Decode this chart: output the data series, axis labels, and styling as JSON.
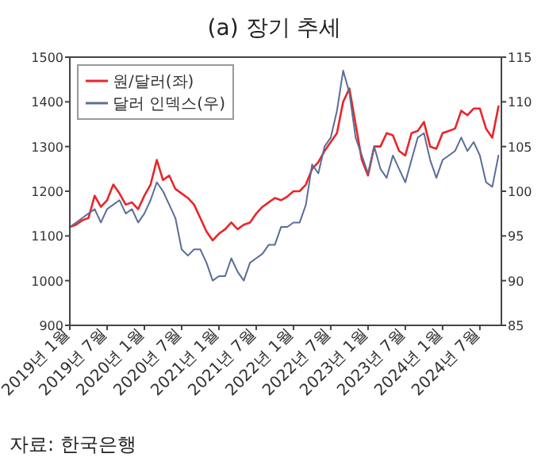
{
  "chart_data": {
    "type": "line",
    "title": "(a) 장기 추세",
    "annotations": [
      "자료: 한국은행"
    ],
    "x": [
      "2019-01",
      "2019-02",
      "2019-03",
      "2019-04",
      "2019-05",
      "2019-06",
      "2019-07",
      "2019-08",
      "2019-09",
      "2019-10",
      "2019-11",
      "2019-12",
      "2020-01",
      "2020-02",
      "2020-03",
      "2020-04",
      "2020-05",
      "2020-06",
      "2020-07",
      "2020-08",
      "2020-09",
      "2020-10",
      "2020-11",
      "2020-12",
      "2021-01",
      "2021-02",
      "2021-03",
      "2021-04",
      "2021-05",
      "2021-06",
      "2021-07",
      "2021-08",
      "2021-09",
      "2021-10",
      "2021-11",
      "2021-12",
      "2022-01",
      "2022-02",
      "2022-03",
      "2022-04",
      "2022-05",
      "2022-06",
      "2022-07",
      "2022-08",
      "2022-09",
      "2022-10",
      "2022-11",
      "2022-12",
      "2023-01",
      "2023-02",
      "2023-03",
      "2023-04",
      "2023-05",
      "2023-06",
      "2023-07",
      "2023-08",
      "2023-09",
      "2023-10",
      "2023-11",
      "2023-12",
      "2024-01",
      "2024-02",
      "2024-03",
      "2024-04",
      "2024-05",
      "2024-06",
      "2024-07",
      "2024-08",
      "2024-09",
      "2024-10"
    ],
    "series": [
      {
        "name": "원/달러(좌)",
        "color": "#e8262a",
        "values": [
          1120,
          1125,
          1135,
          1140,
          1190,
          1165,
          1180,
          1215,
          1195,
          1170,
          1175,
          1160,
          1190,
          1215,
          1270,
          1225,
          1235,
          1205,
          1195,
          1185,
          1170,
          1140,
          1110,
          1090,
          1105,
          1115,
          1130,
          1115,
          1125,
          1130,
          1150,
          1165,
          1175,
          1185,
          1180,
          1188,
          1200,
          1200,
          1215,
          1250,
          1265,
          1290,
          1310,
          1330,
          1400,
          1430,
          1350,
          1270,
          1235,
          1300,
          1300,
          1330,
          1325,
          1290,
          1280,
          1330,
          1335,
          1355,
          1300,
          1295,
          1330,
          1335,
          1340,
          1380,
          1370,
          1385,
          1385,
          1340,
          1320,
          1390
        ]
      },
      {
        "name": "달러 인덱스(우)",
        "color": "#5a6e96",
        "axis": "y2",
        "values": [
          96,
          96.5,
          97,
          97.5,
          98,
          96.5,
          98,
          98.5,
          99,
          97.5,
          98,
          96.5,
          97.5,
          99,
          101,
          100,
          98.5,
          97,
          93.5,
          92.8,
          93.5,
          93.5,
          92,
          90,
          90.5,
          90.5,
          92.5,
          91,
          90,
          92,
          92.5,
          93,
          94,
          94,
          96,
          96,
          96.5,
          96.5,
          98.5,
          103,
          102,
          105,
          106,
          109,
          113.5,
          111,
          106,
          104,
          102,
          105,
          102.5,
          101.5,
          104,
          102.5,
          101,
          103.5,
          106,
          106.5,
          103.5,
          101.5,
          103.5,
          104,
          104.5,
          106,
          104.5,
          105.5,
          104,
          101,
          100.5,
          104
        ]
      }
    ],
    "xlim": [
      "2019-01",
      "2024-10-15"
    ],
    "xticks": [
      {
        "value": "2019-01",
        "label": "2019년 1월"
      },
      {
        "value": "2019-07",
        "label": "2019년 7월"
      },
      {
        "value": "2020-01",
        "label": "2020년 1월"
      },
      {
        "value": "2020-07",
        "label": "2020년 7월"
      },
      {
        "value": "2021-01",
        "label": "2021년 1월"
      },
      {
        "value": "2021-07",
        "label": "2021년 7월"
      },
      {
        "value": "2022-01",
        "label": "2022년 1월"
      },
      {
        "value": "2022-07",
        "label": "2022년 7월"
      },
      {
        "value": "2023-01",
        "label": "2023년 1월"
      },
      {
        "value": "2023-07",
        "label": "2023년 7월"
      },
      {
        "value": "2024-01",
        "label": "2024년 1월"
      },
      {
        "value": "2024-07",
        "label": "2024년 7월"
      }
    ],
    "ylim": [
      900,
      1500
    ],
    "yticks": [
      900,
      1000,
      1100,
      1200,
      1300,
      1400,
      1500
    ],
    "y2lim": [
      85,
      115
    ],
    "y2ticks": [
      85,
      90,
      95,
      100,
      105,
      110,
      115
    ],
    "legend": "top left",
    "grid": false,
    "marker": "none",
    "line_style": "solid"
  }
}
